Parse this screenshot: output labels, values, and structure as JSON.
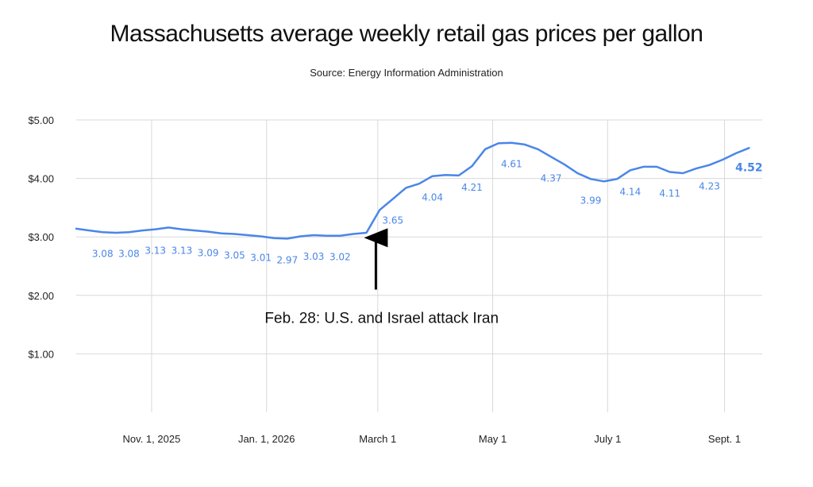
{
  "chart_data": {
    "type": "line",
    "title": "Massachusetts average weekly retail gas prices per gallon",
    "subtitle": "Source: Energy Information Administration",
    "ylim": [
      0,
      5
    ],
    "y_ticks": [
      {
        "value": 1,
        "label": "$1.00"
      },
      {
        "value": 2,
        "label": "$2.00"
      },
      {
        "value": 3,
        "label": "$3.00"
      },
      {
        "value": 4,
        "label": "$4.00"
      },
      {
        "value": 5,
        "label": "$5.00"
      }
    ],
    "x_range": [
      "2025-09-22",
      "2026-09-21"
    ],
    "x_ticks": [
      {
        "date": "2025-11-01",
        "label": "Nov. 1, 2025"
      },
      {
        "date": "2026-01-01",
        "label": "Jan. 1, 2026"
      },
      {
        "date": "2026-03-01",
        "label": "March 1"
      },
      {
        "date": "2026-05-01",
        "label": "May 1"
      },
      {
        "date": "2026-07-01",
        "label": "July 1"
      },
      {
        "date": "2026-09-01",
        "label": "Sept. 1"
      }
    ],
    "grid": true,
    "series": [
      {
        "color": "#4a86e8",
        "points": [
          {
            "x": "2025-09-22",
            "y": 3.14
          },
          {
            "x": "2025-09-29",
            "y": 3.11
          },
          {
            "x": "2025-10-06",
            "y": 3.08
          },
          {
            "x": "2025-10-13",
            "y": 3.07
          },
          {
            "x": "2025-10-20",
            "y": 3.08
          },
          {
            "x": "2025-10-27",
            "y": 3.11
          },
          {
            "x": "2025-11-03",
            "y": 3.13
          },
          {
            "x": "2025-11-10",
            "y": 3.16
          },
          {
            "x": "2025-11-17",
            "y": 3.13
          },
          {
            "x": "2025-11-24",
            "y": 3.11
          },
          {
            "x": "2025-12-01",
            "y": 3.09
          },
          {
            "x": "2025-12-08",
            "y": 3.06
          },
          {
            "x": "2025-12-15",
            "y": 3.05
          },
          {
            "x": "2025-12-22",
            "y": 3.03
          },
          {
            "x": "2025-12-29",
            "y": 3.01
          },
          {
            "x": "2026-01-05",
            "y": 2.98
          },
          {
            "x": "2026-01-12",
            "y": 2.97
          },
          {
            "x": "2026-01-19",
            "y": 3.01
          },
          {
            "x": "2026-01-26",
            "y": 3.03
          },
          {
            "x": "2026-02-02",
            "y": 3.02
          },
          {
            "x": "2026-02-09",
            "y": 3.02
          },
          {
            "x": "2026-02-16",
            "y": 3.05
          },
          {
            "x": "2026-02-23",
            "y": 3.07
          },
          {
            "x": "2026-03-02",
            "y": 3.46
          },
          {
            "x": "2026-03-09",
            "y": 3.65
          },
          {
            "x": "2026-03-16",
            "y": 3.84
          },
          {
            "x": "2026-03-23",
            "y": 3.91
          },
          {
            "x": "2026-03-30",
            "y": 4.04
          },
          {
            "x": "2026-04-06",
            "y": 4.06
          },
          {
            "x": "2026-04-13",
            "y": 4.05
          },
          {
            "x": "2026-04-20",
            "y": 4.21
          },
          {
            "x": "2026-04-27",
            "y": 4.5
          },
          {
            "x": "2026-05-04",
            "y": 4.6
          },
          {
            "x": "2026-05-11",
            "y": 4.61
          },
          {
            "x": "2026-05-18",
            "y": 4.58
          },
          {
            "x": "2026-05-25",
            "y": 4.5
          },
          {
            "x": "2026-06-01",
            "y": 4.37
          },
          {
            "x": "2026-06-08",
            "y": 4.24
          },
          {
            "x": "2026-06-15",
            "y": 4.09
          },
          {
            "x": "2026-06-22",
            "y": 3.99
          },
          {
            "x": "2026-06-29",
            "y": 3.95
          },
          {
            "x": "2026-07-06",
            "y": 3.99
          },
          {
            "x": "2026-07-13",
            "y": 4.14
          },
          {
            "x": "2026-07-20",
            "y": 4.2
          },
          {
            "x": "2026-07-27",
            "y": 4.2
          },
          {
            "x": "2026-08-03",
            "y": 4.11
          },
          {
            "x": "2026-08-10",
            "y": 4.09
          },
          {
            "x": "2026-08-17",
            "y": 4.17
          },
          {
            "x": "2026-08-24",
            "y": 4.23
          },
          {
            "x": "2026-08-31",
            "y": 4.32
          },
          {
            "x": "2026-09-07",
            "y": 4.43
          },
          {
            "x": "2026-09-14",
            "y": 4.52
          }
        ]
      }
    ],
    "data_labels": [
      {
        "x": "2025-10-06",
        "text": "3.08",
        "position": "below"
      },
      {
        "x": "2025-10-20",
        "text": "3.08",
        "position": "below"
      },
      {
        "x": "2025-11-03",
        "text": "3.13",
        "position": "below"
      },
      {
        "x": "2025-11-17",
        "text": "3.13",
        "position": "below"
      },
      {
        "x": "2025-12-01",
        "text": "3.09",
        "position": "below"
      },
      {
        "x": "2025-12-15",
        "text": "3.05",
        "position": "below"
      },
      {
        "x": "2025-12-29",
        "text": "3.01",
        "position": "below"
      },
      {
        "x": "2026-01-12",
        "text": "2.97",
        "position": "below"
      },
      {
        "x": "2026-01-26",
        "text": "3.03",
        "position": "below"
      },
      {
        "x": "2026-02-09",
        "text": "3.02",
        "position": "below"
      },
      {
        "x": "2026-03-09",
        "text": "3.65",
        "position": "below"
      },
      {
        "x": "2026-03-30",
        "text": "4.04",
        "position": "below"
      },
      {
        "x": "2026-04-20",
        "text": "4.21",
        "position": "below"
      },
      {
        "x": "2026-05-11",
        "text": "4.61",
        "position": "below"
      },
      {
        "x": "2026-06-01",
        "text": "4.37",
        "position": "below"
      },
      {
        "x": "2026-06-22",
        "text": "3.99",
        "position": "below"
      },
      {
        "x": "2026-07-13",
        "text": "4.14",
        "position": "below"
      },
      {
        "x": "2026-08-03",
        "text": "4.11",
        "position": "below"
      },
      {
        "x": "2026-08-24",
        "text": "4.23",
        "position": "below"
      },
      {
        "x": "2026-09-14",
        "text": "4.52",
        "position": "below",
        "emphasis": true
      }
    ],
    "annotations": [
      {
        "x": "2026-02-28",
        "text": "Feb. 28: U.S. and Israel attack Iran",
        "arrow": true,
        "arrow_from_y": 2.1,
        "arrow_to_y": 3.04
      }
    ]
  }
}
